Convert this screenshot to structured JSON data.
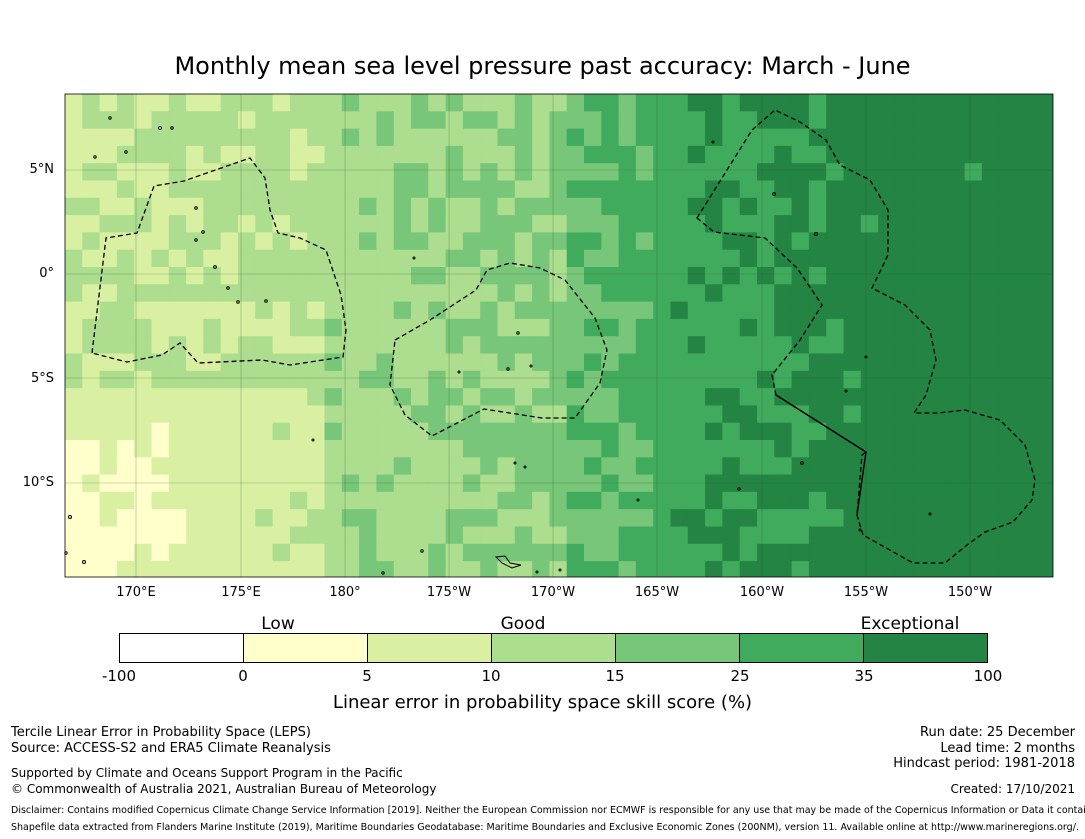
{
  "title": "Monthly mean sea level pressure past accuracy: March - June",
  "map": {
    "lat_labels": [
      "5°N",
      "0°",
      "5°S",
      "10°S"
    ],
    "lon_labels": [
      "170°E",
      "175°E",
      "180°",
      "175°W",
      "170°W",
      "165°W",
      "160°W",
      "155°W",
      "150°W"
    ],
    "extent": {
      "lon_min": 166.5,
      "lon_max": 213.5,
      "lat_min": -14.5,
      "lat_max": 8.7
    },
    "palette": [
      "#ffffff",
      "#ffffcc",
      "#d9f0a3",
      "#addd8e",
      "#78c679",
      "#41ab5d",
      "#238443"
    ]
  },
  "legend": {
    "categories": [
      {
        "label": "Low"
      },
      {
        "label": "Good"
      },
      {
        "label": "Exceptional"
      }
    ],
    "ticks": [
      "-100",
      "0",
      "5",
      "10",
      "15",
      "25",
      "35",
      "100"
    ],
    "title": "Linear error in probability space skill score (%)"
  },
  "footer": {
    "left1": "Tercile Linear Error in Probability Space (LEPS)",
    "left2": "Source: ACCESS-S2 and ERA5 Climate Reanalysis",
    "left3": "Supported by Climate and Oceans Support Program in the Pacific",
    "left4": "© Commonwealth of Australia 2021, Australian Bureau of Meteorology",
    "run_date": "Run date: 25 December",
    "lead_time": "Lead time: 2 months",
    "hindcast": "Hindcast period: 1981-2018",
    "created": "Created: 17/10/2021",
    "disclaimer1": "Disclaimer: Contains modified Copernicus Climate Change Service Information [2019]. Neither the European Commission nor ECMWF is responsible for any use that may be made of the Copernicus Information or Data it contains.",
    "disclaimer2": "Shapefile data extracted from Flanders Marine Institute (2019), Maritime Boundaries Geodatabase: Maritime Boundaries and Exclusive Economic Zones (200NM), version 11. Available online at http://www.marineregions.org/."
  }
}
